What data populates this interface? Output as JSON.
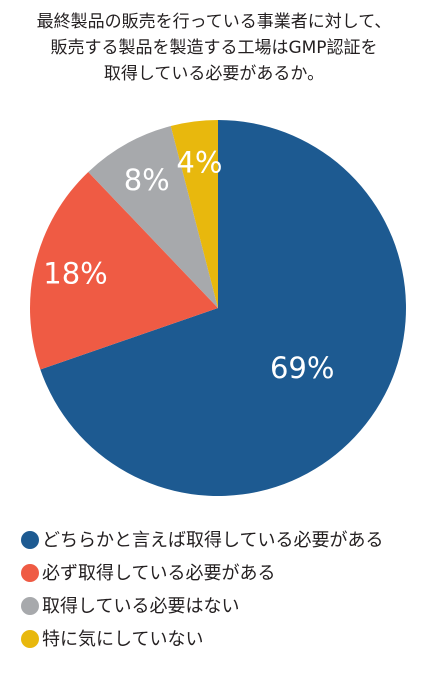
{
  "chart_data": {
    "type": "pie",
    "title": [
      "最終製品の販売を行っている事業者に対して、",
      "販売する製品を製造する工場はGMP認証を",
      "取得している必要があるか。"
    ],
    "categories": [
      "どちらかと言えば取得している必要がある",
      "必ず取得している必要がある",
      "取得している必要はない",
      "特に気にしていない"
    ],
    "values": [
      69,
      18,
      8,
      4
    ],
    "value_labels": [
      "69%",
      "18%",
      "8%",
      "4%"
    ],
    "colors": [
      "#1d5a91",
      "#ef5b44",
      "#a7a9ac",
      "#e8b80d"
    ]
  }
}
